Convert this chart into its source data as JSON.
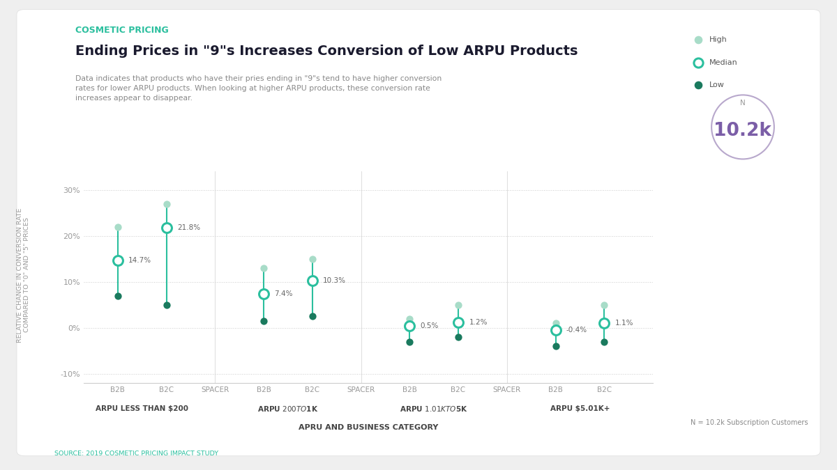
{
  "title": "Ending Prices in \"9\"s Increases Conversion of Low ARPU Products",
  "subtitle": "Data indicates that products who have their pries ending in \"9\"s tend to have higher conversion\nrates for lower ARPU products. When looking at higher ARPU products, these conversion rate\nincreases appear to disappear.",
  "label_top": "COSMETIC PRICING",
  "xlabel": "APRU AND BUSINESS CATEGORY",
  "ylabel": "RELATIVE CHANGE IN CONVERSION RATE\nCOMPARED TO \"0\" AND \"5\" PRICES",
  "source": "SOURCE: 2019 COSMETIC PRICING IMPACT STUDY",
  "n_label": "10.2k",
  "n_sub": "N",
  "legend_items": [
    "High",
    "Median",
    "Low"
  ],
  "color_high": "#a8dcc8",
  "color_median": "#2bbf9e",
  "color_low": "#1a7a5e",
  "color_label": "#2bbf9e",
  "color_title": "#1a1a2e",
  "color_n": "#7b5ea7",
  "background": "#efefef",
  "card_background": "#ffffff",
  "groups": [
    "ARPU LESS THAN $200",
    "ARPU $200 TO $1K",
    "ARPU $1.01K TO $5K",
    "ARPU $5.01K+"
  ],
  "data": {
    "B2B_1": {
      "high": 22.0,
      "median": 14.7,
      "low": 7.0,
      "label": "14.7%"
    },
    "B2C_1": {
      "high": 27.0,
      "median": 21.8,
      "low": 5.0,
      "label": "21.8%"
    },
    "B2B_2": {
      "high": 13.0,
      "median": 7.4,
      "low": 1.5,
      "label": "7.4%"
    },
    "B2C_2": {
      "high": 15.0,
      "median": 10.3,
      "low": 2.5,
      "label": "10.3%"
    },
    "B2B_3": {
      "high": 2.0,
      "median": 0.5,
      "low": -3.0,
      "label": "0.5%"
    },
    "B2C_3": {
      "high": 5.0,
      "median": 1.2,
      "low": -2.0,
      "label": "1.2%"
    },
    "B2B_4": {
      "high": 1.0,
      "median": -0.4,
      "low": -4.0,
      "label": "-0.4%"
    },
    "B2C_4": {
      "high": 5.0,
      "median": 1.1,
      "low": -3.0,
      "label": "1.1%"
    }
  },
  "ylim": [
    -12,
    34
  ],
  "yticks": [
    -10,
    0,
    10,
    20,
    30
  ],
  "ytick_labels": [
    "-10%",
    "0%",
    "10%",
    "20%",
    "30%"
  ]
}
